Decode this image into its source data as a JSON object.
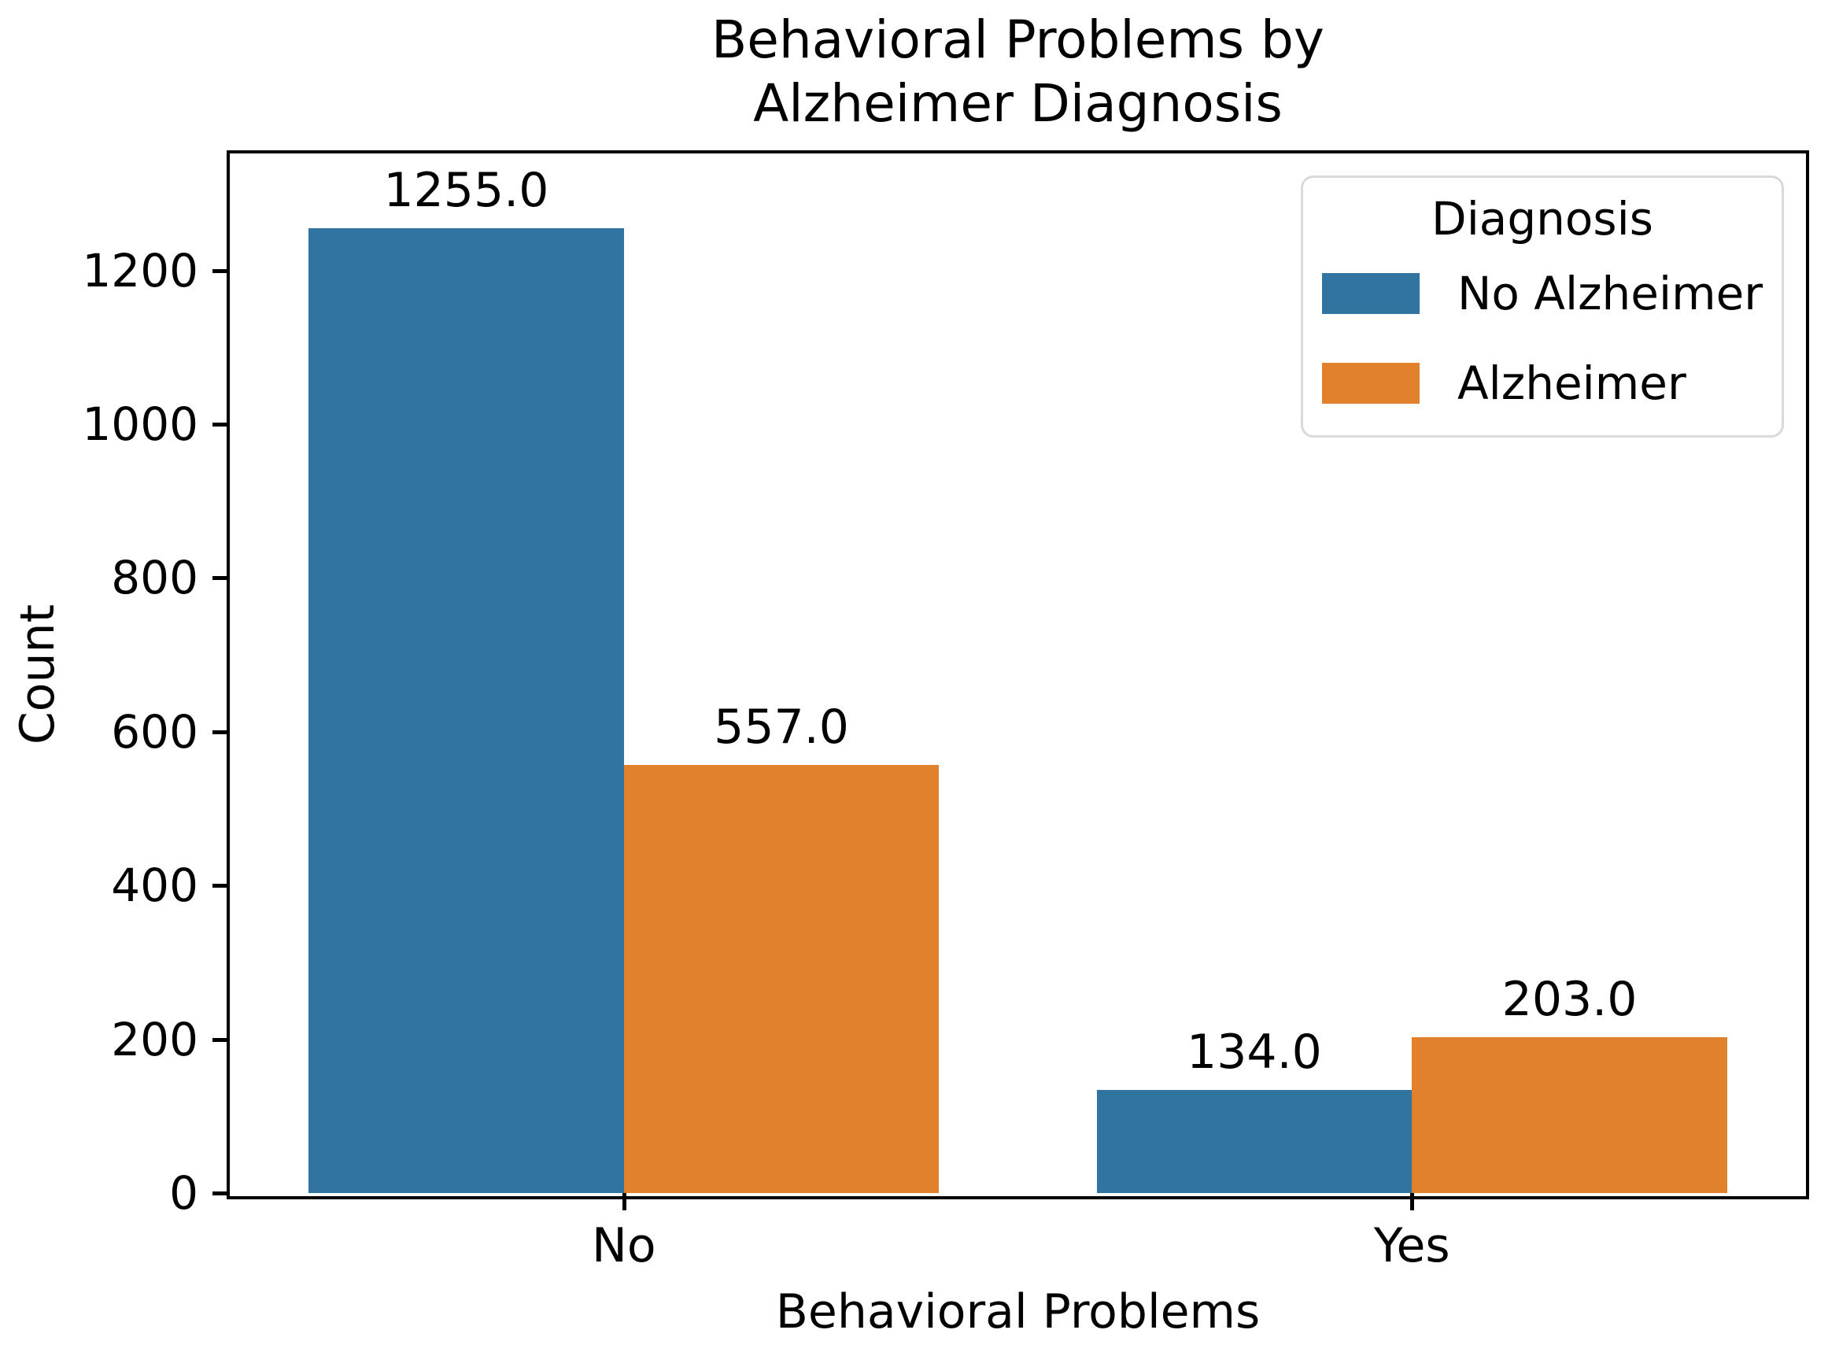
{
  "chart_data": {
    "type": "bar",
    "title": "Behavioral Problems by\nAlzheimer Diagnosis",
    "title_lines": [
      "Behavioral Problems by",
      "Alzheimer Diagnosis"
    ],
    "xlabel": "Behavioral Problems",
    "ylabel": "Count",
    "categories": [
      "No",
      "Yes"
    ],
    "series": [
      {
        "name": "No Alzheimer",
        "color": "#3274a1",
        "values": [
          1255.0,
          134.0
        ],
        "value_labels": [
          "1255.0",
          "134.0"
        ]
      },
      {
        "name": "Alzheimer",
        "color": "#e1812c",
        "values": [
          557.0,
          203.0
        ],
        "value_labels": [
          "557.0",
          "203.0"
        ]
      }
    ],
    "legend": {
      "title": "Diagnosis",
      "position": "upper right",
      "entries": [
        "No Alzheimer",
        "Alzheimer"
      ]
    },
    "ylim": [
      0,
      1352
    ],
    "yticks": [
      0,
      200,
      400,
      600,
      800,
      1000,
      1200
    ],
    "xlim": [
      -0.5,
      1.5
    ],
    "bar_width_units": 0.4,
    "grid": false,
    "background_color": "#ffffff",
    "spine_color": "#000000",
    "text_color": "#000000",
    "legend_border_color": "#d9d9d9"
  }
}
